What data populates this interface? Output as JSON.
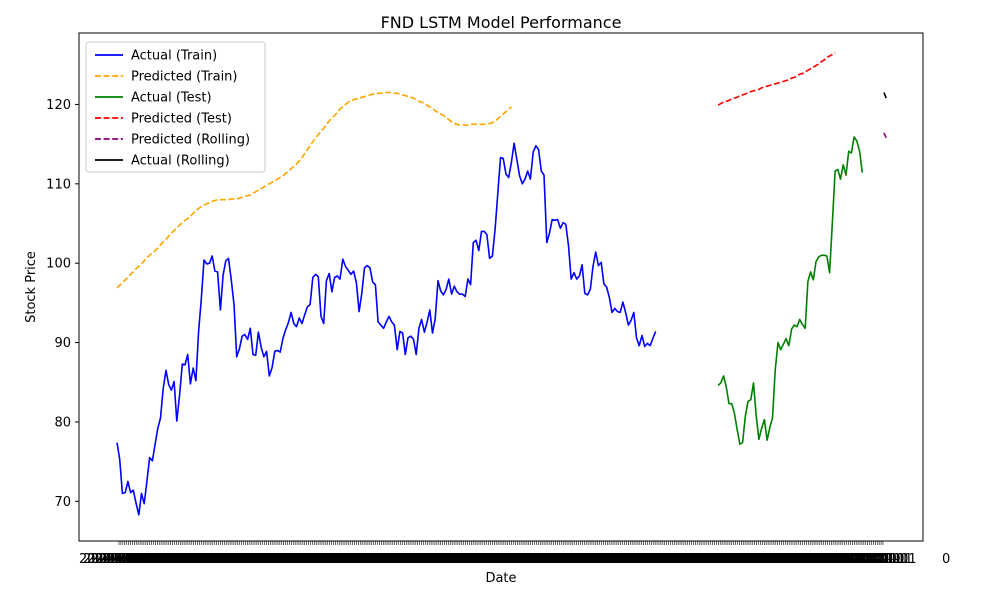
{
  "chart_data": {
    "type": "line",
    "title": "FND LSTM Model Performance",
    "xlabel": "Date",
    "ylabel": "Stock Price",
    "ylim": [
      65,
      129
    ],
    "yticks": [
      70,
      80,
      90,
      100,
      110,
      120
    ],
    "x_tick_label_count": 400,
    "grid": false,
    "legend_position": "top-left",
    "legend": [
      {
        "name": "Actual (Train)",
        "color": "#0000ff",
        "dash": "solid"
      },
      {
        "name": "Predicted (Train)",
        "color": "#ffa500",
        "dash": "dashed"
      },
      {
        "name": "Actual (Test)",
        "color": "#008000",
        "dash": "solid"
      },
      {
        "name": "Predicted (Test)",
        "color": "#ff0000",
        "dash": "dashed"
      },
      {
        "name": "Predicted (Rolling)",
        "color": "#800080",
        "dash": "dashed"
      },
      {
        "name": "Actual (Rolling)",
        "color": "#000000",
        "dash": "solid"
      }
    ],
    "series": [
      {
        "key": "actual_train",
        "color": "#0000ff",
        "dash": "solid",
        "x_start": 0,
        "step": 1,
        "values": [
          77.4,
          75.3,
          71.0,
          71.1,
          72.5,
          71.1,
          71.4,
          69.8,
          68.3,
          71.0,
          69.7,
          72.5,
          75.5,
          75.1,
          77.2,
          79.2,
          80.5,
          84.2,
          86.5,
          84.7,
          84.0,
          85.1,
          80.1,
          83.4,
          87.3,
          87.2,
          88.5,
          84.8,
          86.8,
          85.2,
          91.4,
          95.5,
          100.4,
          99.9,
          100.0,
          100.9,
          99.0,
          98.9,
          94.1,
          98.5,
          100.3,
          100.6,
          98.0,
          94.8,
          88.2,
          89.2,
          90.8,
          91.0,
          90.4,
          91.8,
          88.5,
          88.4,
          91.3,
          89.4,
          88.2,
          88.9,
          85.8,
          86.8,
          88.9,
          89.0,
          88.8,
          90.5,
          91.6,
          92.5,
          93.8,
          92.4,
          92.0,
          93.1,
          92.4,
          93.5,
          94.5,
          94.8,
          98.2,
          98.6,
          98.3,
          93.3,
          92.4,
          97.8,
          98.7,
          96.4,
          98.2,
          98.4,
          98.0,
          100.5,
          99.6,
          99.1,
          98.6,
          99.0,
          97.5,
          93.9,
          96.2,
          99.4,
          99.7,
          99.4,
          97.6,
          97.3,
          92.6,
          92.2,
          91.8,
          92.6,
          93.3,
          92.6,
          92.2,
          89.1,
          91.4,
          91.2,
          88.5,
          90.6,
          90.8,
          90.4,
          88.5,
          91.8,
          92.9,
          91.3,
          92.6,
          94.1,
          91.2,
          93.0,
          97.8,
          96.5,
          96.0,
          96.7,
          98.0,
          96.1,
          97.1,
          96.4,
          96.1,
          96.1,
          95.8,
          98.0,
          97.3,
          102.6,
          102.9,
          101.6,
          104.0,
          104.0,
          103.6,
          100.6,
          100.9,
          104.3,
          108.8,
          113.3,
          113.2,
          111.2,
          110.8,
          112.7,
          115.1,
          113.1,
          111.0,
          110.0,
          110.6,
          111.6,
          110.6,
          114.0,
          114.8,
          114.3,
          111.6,
          111.1,
          102.6,
          103.8,
          105.5,
          105.4,
          105.5,
          104.4,
          105.1,
          104.9,
          102.2,
          98.0,
          98.8,
          98.0,
          98.4,
          99.8,
          96.2,
          96.0,
          96.7,
          99.6,
          101.4,
          99.7,
          100.1,
          97.4,
          97.0,
          95.7,
          93.8,
          94.3,
          93.9,
          93.8,
          95.1,
          93.8,
          92.2,
          92.8,
          93.8,
          90.6,
          89.6,
          90.9,
          89.5,
          89.9,
          89.6,
          90.5,
          91.4
        ]
      },
      {
        "key": "predicted_train",
        "color": "#ffa500",
        "dash": "dashed",
        "x_start": 0,
        "step": 1,
        "values": [
          96.9,
          97.2,
          97.5,
          97.9,
          98.2,
          98.6,
          98.9,
          99.3,
          99.6,
          99.9,
          100.3,
          100.7,
          101.0,
          101.3,
          101.6,
          101.9,
          102.3,
          102.7,
          103.0,
          103.4,
          103.8,
          104.1,
          104.5,
          104.8,
          105.1,
          105.4,
          105.6,
          105.9,
          106.3,
          106.6,
          106.9,
          107.1,
          107.3,
          107.5,
          107.6,
          107.8,
          107.9,
          108.0,
          108.0,
          108.0,
          108.0,
          108.0,
          108.1,
          108.1,
          108.1,
          108.2,
          108.3,
          108.4,
          108.5,
          108.6,
          108.8,
          109.0,
          109.2,
          109.4,
          109.6,
          109.8,
          110.0,
          110.2,
          110.4,
          110.6,
          110.8,
          111.0,
          111.3,
          111.6,
          111.9,
          112.2,
          112.5,
          112.9,
          113.3,
          113.8,
          114.3,
          114.8,
          115.3,
          115.8,
          116.2,
          116.6,
          117.0,
          117.5,
          117.9,
          118.3,
          118.6,
          119.0,
          119.4,
          119.7,
          120.0,
          120.3,
          120.5,
          120.6,
          120.7,
          120.8,
          120.9,
          121.0,
          121.1,
          121.2,
          121.3,
          121.3,
          121.4,
          121.4,
          121.5,
          121.5,
          121.5,
          121.5,
          121.4,
          121.4,
          121.3,
          121.2,
          121.1,
          121.0,
          120.9,
          120.8,
          120.6,
          120.4,
          120.3,
          120.1,
          119.9,
          119.7,
          119.5,
          119.2,
          119.0,
          118.8,
          118.6,
          118.3,
          118.1,
          117.8,
          117.6,
          117.5,
          117.4,
          117.4,
          117.4,
          117.4,
          117.5,
          117.5,
          117.5,
          117.5,
          117.5,
          117.5,
          117.5,
          117.6,
          117.7,
          117.9,
          118.2,
          118.5,
          118.8,
          119.1,
          119.4,
          119.7
        ]
      },
      {
        "key": "actual_test",
        "color": "#008000",
        "dash": "solid",
        "x_start": 221,
        "step": 1,
        "values": [
          84.6,
          84.9,
          85.8,
          84.4,
          82.3,
          82.3,
          81.1,
          79.0,
          77.2,
          77.4,
          80.7,
          82.6,
          82.8,
          84.9,
          80.8,
          77.8,
          79.2,
          80.3,
          77.7,
          79.3,
          80.5,
          86.5,
          90.0,
          89.1,
          89.8,
          90.5,
          89.6,
          91.7,
          92.2,
          92.0,
          92.9,
          92.3,
          91.8,
          97.7,
          98.9,
          97.9,
          100.2,
          100.8,
          101.0,
          101.0,
          100.9,
          98.8,
          105.2,
          111.6,
          111.8,
          110.6,
          112.4,
          111.1,
          114.1,
          113.9,
          115.9,
          115.4,
          114.1,
          111.4
        ]
      },
      {
        "key": "predicted_test",
        "color": "#ff0000",
        "dash": "dashed",
        "x_start": 221,
        "step": 1,
        "values": [
          119.9,
          120.1,
          120.3,
          120.4,
          120.5,
          120.7,
          120.8,
          120.9,
          121.1,
          121.2,
          121.3,
          121.5,
          121.6,
          121.7,
          121.8,
          121.9,
          122.1,
          122.2,
          122.3,
          122.4,
          122.5,
          122.6,
          122.7,
          122.8,
          122.9,
          123.0,
          123.1,
          123.3,
          123.4,
          123.6,
          123.8,
          123.9,
          124.1,
          124.3,
          124.5,
          124.7,
          124.9,
          125.1,
          125.4,
          125.6,
          125.9,
          126.1,
          126.3,
          126.5
        ]
      },
      {
        "key": "predicted_rolling",
        "color": "#800080",
        "dash": "dashed",
        "x_start": 282,
        "step": 0.8,
        "values": [
          116.4,
          115.8
        ]
      },
      {
        "key": "actual_rolling",
        "color": "#000000",
        "dash": "solid",
        "x_start": 282,
        "step": 0.8,
        "values": [
          121.5,
          120.8
        ]
      }
    ]
  }
}
